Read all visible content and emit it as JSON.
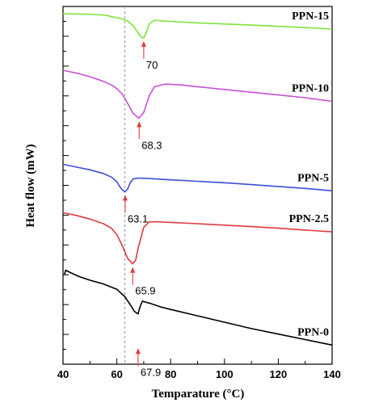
{
  "chart_data": {
    "type": "line",
    "xlabel": "Temparature (°C)",
    "ylabel": "Heat flow (mW)",
    "xlim": [
      40,
      140
    ],
    "x_ticks": [
      40,
      60,
      80,
      100,
      120,
      140
    ],
    "y_ticks_labeled": false,
    "reference_line_x": 63,
    "series": [
      {
        "name": "PPN-15",
        "color": "#7fe33a",
        "peak": "70",
        "peak_x": 70,
        "x": [
          40,
          50,
          56,
          58,
          60,
          62,
          64,
          66,
          68,
          69,
          70,
          71,
          72,
          74,
          80,
          90,
          100,
          110,
          120,
          130,
          140
        ],
        "y": [
          0.0,
          -0.3,
          -0.8,
          -1.6,
          -2.2,
          -2.8,
          -4.0,
          -6.5,
          -10.5,
          -12.8,
          -13.2,
          -10.0,
          -5.5,
          -3.6,
          -4.2,
          -5.0,
          -5.6,
          -6.2,
          -6.9,
          -7.6,
          -8.4
        ]
      },
      {
        "name": "PPN-10",
        "color": "#c94fd6",
        "peak": "68.3",
        "peak_x": 68.3,
        "x": [
          40,
          45,
          50,
          55,
          58,
          60,
          62,
          64,
          66,
          68,
          68.3,
          70,
          72,
          74,
          78,
          84,
          90,
          100,
          110,
          120,
          130,
          140
        ],
        "y": [
          -31.0,
          -32.5,
          -34.5,
          -37.0,
          -39.0,
          -41.0,
          -44.0,
          -49.0,
          -54.5,
          -57.0,
          -57.2,
          -54.0,
          -45.0,
          -40.0,
          -38.5,
          -39.0,
          -40.0,
          -41.5,
          -43.0,
          -44.5,
          -46.0,
          -48.0
        ]
      },
      {
        "name": "PPN-5",
        "color": "#3b4dd8",
        "peak": "63.1",
        "peak_x": 63.1,
        "x": [
          40,
          45,
          50,
          55,
          58,
          60,
          61,
          62,
          63.1,
          64,
          65,
          66,
          68,
          72,
          80,
          90,
          100,
          110,
          120,
          130,
          140
        ],
        "y": [
          -82.5,
          -84.0,
          -85.5,
          -87.5,
          -89.5,
          -92.0,
          -94.5,
          -96.5,
          -97.5,
          -96.0,
          -92.5,
          -90.5,
          -90.0,
          -90.3,
          -91.0,
          -91.8,
          -92.6,
          -93.6,
          -94.6,
          -95.7,
          -97.0
        ]
      },
      {
        "name": "PPN-2.5",
        "color": "#e03a3a",
        "peak": "65.9",
        "peak_x": 65.9,
        "x": [
          40,
          45,
          50,
          55,
          58,
          60,
          62,
          64,
          65.9,
          67,
          68,
          70,
          72,
          75,
          80,
          90,
          100,
          110,
          120,
          130,
          140
        ],
        "y": [
          -109.0,
          -110.5,
          -112.5,
          -115.0,
          -117.5,
          -121.0,
          -127.0,
          -134.0,
          -137.0,
          -135.0,
          -128.0,
          -117.0,
          -114.0,
          -114.0,
          -114.3,
          -115.0,
          -115.8,
          -116.6,
          -117.5,
          -118.5,
          -119.5
        ]
      },
      {
        "name": "PPN-0",
        "color": "#000000",
        "peak": "67.9",
        "peak_x": 67.9,
        "x": [
          40.5,
          41,
          43,
          46,
          50,
          55,
          60,
          63,
          65,
          66.5,
          67.9,
          68.5,
          69.5,
          72,
          76,
          80,
          90,
          100,
          110,
          120,
          130,
          140
        ],
        "y": [
          -143.0,
          -140.5,
          -142.0,
          -144.0,
          -146.0,
          -148.0,
          -151.0,
          -155.0,
          -159.5,
          -163.0,
          -164.5,
          -161.0,
          -157.5,
          -158.5,
          -160.5,
          -162.0,
          -165.5,
          -169.0,
          -172.5,
          -175.5,
          -178.5,
          -181.5
        ]
      }
    ]
  }
}
